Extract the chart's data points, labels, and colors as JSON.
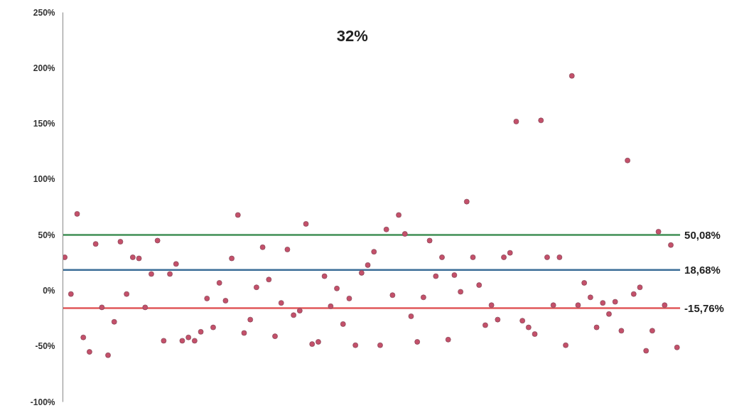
{
  "chart_data": {
    "type": "scatter",
    "title": "32%",
    "categories": [
      null,
      null,
      null,
      null,
      null,
      null,
      null,
      null,
      null,
      null,
      null,
      null,
      null,
      null,
      null,
      null,
      null,
      null,
      null,
      null,
      null,
      null,
      null,
      null,
      null,
      null,
      null,
      null,
      null,
      null,
      null,
      null,
      null,
      null,
      null,
      null,
      null,
      null,
      null,
      null,
      null,
      null,
      null,
      null,
      null,
      null,
      null,
      null,
      null,
      null,
      null,
      null,
      null,
      null,
      null,
      null,
      null,
      null,
      null,
      null,
      null,
      null,
      null,
      null,
      null,
      null,
      null,
      null,
      null,
      null,
      null,
      null,
      null,
      null,
      null,
      null,
      null,
      null,
      null,
      null,
      null,
      null,
      null,
      null,
      null,
      null,
      null,
      null,
      null,
      null,
      null,
      null,
      null,
      null,
      null,
      null,
      null,
      null,
      null,
      null
    ],
    "series": [
      {
        "color": "#c4506a",
        "values": [
          30,
          -3,
          69,
          -42,
          -55,
          42,
          -15,
          -58,
          -28,
          44,
          -3,
          30,
          29,
          -15,
          15,
          45,
          -45,
          15,
          24,
          -45,
          -42,
          -45,
          -37,
          -7,
          -33,
          7,
          -9,
          29,
          68,
          -38,
          -26,
          3,
          39,
          10,
          -41,
          -11,
          37,
          -22,
          -18,
          60,
          -48,
          -46,
          13,
          -14,
          2,
          -30,
          -7,
          -49,
          16,
          23,
          35,
          -49,
          55,
          -4,
          68,
          51,
          -23,
          -46,
          -6,
          45,
          13,
          30,
          -44,
          14,
          -1,
          80,
          30,
          5,
          -31,
          -13,
          -26,
          30,
          34,
          152,
          -27,
          -33,
          -39,
          153,
          30,
          -13,
          30,
          -49,
          193,
          -13,
          7,
          -6,
          -33,
          -11,
          -21,
          -10,
          -36,
          117,
          -3,
          3,
          -54,
          -36,
          53,
          -13,
          41,
          -51
        ]
      }
    ],
    "ylim": [
      -100,
      250
    ],
    "yticks": [
      {
        "value": -100,
        "label": "-100%"
      },
      {
        "value": -50,
        "label": "-50%"
      },
      {
        "value": 0,
        "label": "0%"
      },
      {
        "value": 50,
        "label": "50%"
      },
      {
        "value": 100,
        "label": "100%"
      },
      {
        "value": 150,
        "label": "150%"
      },
      {
        "value": 200,
        "label": "200%"
      },
      {
        "value": 250,
        "label": "250%"
      }
    ],
    "ref_lines": [
      {
        "axis": "y",
        "value": 50.08,
        "label": "50,08%",
        "color": "#3f8f55"
      },
      {
        "axis": "y",
        "value": 18.68,
        "label": "18,68%",
        "color": "#3c6e98"
      },
      {
        "axis": "y",
        "value": -15.76,
        "label": "-15,76%",
        "color": "#e0585a"
      }
    ],
    "marker": "circle",
    "tick_labels": "y"
  }
}
